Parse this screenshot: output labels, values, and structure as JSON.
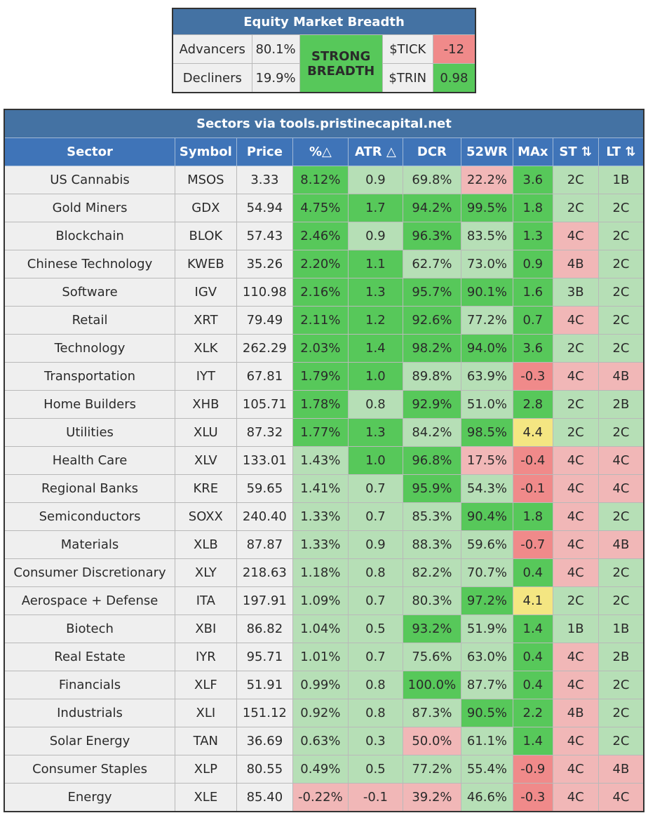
{
  "breadth": {
    "title": "Equity Market Breadth",
    "advancers_label": "Advancers",
    "advancers_value": "80.1%",
    "decliners_label": "Decliners",
    "decliners_value": "19.9%",
    "status": "STRONG BREADTH",
    "tick_label": "$TICK",
    "tick_value": "-12",
    "trin_label": "$TRIN",
    "trin_value": "0.98"
  },
  "sectors": {
    "title": "Sectors via tools.pristinecapital.net",
    "columns": [
      "Sector",
      "Symbol",
      "Price",
      "%△",
      "ATR △",
      "DCR",
      "52WR",
      "MAx",
      "ST ⇅",
      "LT ⇅"
    ],
    "rows": [
      {
        "sector": "US Cannabis",
        "symbol": "MSOS",
        "price": "3.33",
        "pct": "8.12%",
        "atr": "0.9",
        "dcr": "69.8%",
        "wr52": "22.2%",
        "max": "3.6",
        "st": "2C",
        "lt": "1B"
      },
      {
        "sector": "Gold Miners",
        "symbol": "GDX",
        "price": "54.94",
        "pct": "4.75%",
        "atr": "1.7",
        "dcr": "94.2%",
        "wr52": "99.5%",
        "max": "1.8",
        "st": "2C",
        "lt": "2C"
      },
      {
        "sector": "Blockchain",
        "symbol": "BLOK",
        "price": "57.43",
        "pct": "2.46%",
        "atr": "0.9",
        "dcr": "96.3%",
        "wr52": "83.5%",
        "max": "1.3",
        "st": "4C",
        "lt": "2C"
      },
      {
        "sector": "Chinese Technology",
        "symbol": "KWEB",
        "price": "35.26",
        "pct": "2.20%",
        "atr": "1.1",
        "dcr": "62.7%",
        "wr52": "73.0%",
        "max": "0.9",
        "st": "4B",
        "lt": "2C"
      },
      {
        "sector": "Software",
        "symbol": "IGV",
        "price": "110.98",
        "pct": "2.16%",
        "atr": "1.3",
        "dcr": "95.7%",
        "wr52": "90.1%",
        "max": "1.6",
        "st": "3B",
        "lt": "2C"
      },
      {
        "sector": "Retail",
        "symbol": "XRT",
        "price": "79.49",
        "pct": "2.11%",
        "atr": "1.2",
        "dcr": "92.6%",
        "wr52": "77.2%",
        "max": "0.7",
        "st": "4C",
        "lt": "2C"
      },
      {
        "sector": "Technology",
        "symbol": "XLK",
        "price": "262.29",
        "pct": "2.03%",
        "atr": "1.4",
        "dcr": "98.2%",
        "wr52": "94.0%",
        "max": "3.6",
        "st": "2C",
        "lt": "2C"
      },
      {
        "sector": "Transportation",
        "symbol": "IYT",
        "price": "67.81",
        "pct": "1.79%",
        "atr": "1.0",
        "dcr": "89.8%",
        "wr52": "63.9%",
        "max": "-0.3",
        "st": "4C",
        "lt": "4B"
      },
      {
        "sector": "Home Builders",
        "symbol": "XHB",
        "price": "105.71",
        "pct": "1.78%",
        "atr": "0.8",
        "dcr": "92.9%",
        "wr52": "51.0%",
        "max": "2.8",
        "st": "2C",
        "lt": "2B"
      },
      {
        "sector": "Utilities",
        "symbol": "XLU",
        "price": "87.32",
        "pct": "1.77%",
        "atr": "1.3",
        "dcr": "84.2%",
        "wr52": "98.5%",
        "max": "4.4",
        "st": "2C",
        "lt": "2C"
      },
      {
        "sector": "Health Care",
        "symbol": "XLV",
        "price": "133.01",
        "pct": "1.43%",
        "atr": "1.0",
        "dcr": "96.8%",
        "wr52": "17.5%",
        "max": "-0.4",
        "st": "4C",
        "lt": "4C"
      },
      {
        "sector": "Regional Banks",
        "symbol": "KRE",
        "price": "59.65",
        "pct": "1.41%",
        "atr": "0.7",
        "dcr": "95.9%",
        "wr52": "54.3%",
        "max": "-0.1",
        "st": "4C",
        "lt": "4C"
      },
      {
        "sector": "Semiconductors",
        "symbol": "SOXX",
        "price": "240.40",
        "pct": "1.33%",
        "atr": "0.7",
        "dcr": "85.3%",
        "wr52": "90.4%",
        "max": "1.8",
        "st": "4C",
        "lt": "2C"
      },
      {
        "sector": "Materials",
        "symbol": "XLB",
        "price": "87.87",
        "pct": "1.33%",
        "atr": "0.9",
        "dcr": "88.3%",
        "wr52": "59.6%",
        "max": "-0.7",
        "st": "4C",
        "lt": "4B"
      },
      {
        "sector": "Consumer Discretionary",
        "symbol": "XLY",
        "price": "218.63",
        "pct": "1.18%",
        "atr": "0.8",
        "dcr": "82.2%",
        "wr52": "70.7%",
        "max": "0.4",
        "st": "4C",
        "lt": "2C"
      },
      {
        "sector": "Aerospace + Defense",
        "symbol": "ITA",
        "price": "197.91",
        "pct": "1.09%",
        "atr": "0.7",
        "dcr": "80.3%",
        "wr52": "97.2%",
        "max": "4.1",
        "st": "2C",
        "lt": "2C"
      },
      {
        "sector": "Biotech",
        "symbol": "XBI",
        "price": "86.82",
        "pct": "1.04%",
        "atr": "0.5",
        "dcr": "93.2%",
        "wr52": "51.9%",
        "max": "1.4",
        "st": "1B",
        "lt": "1B"
      },
      {
        "sector": "Real Estate",
        "symbol": "IYR",
        "price": "95.71",
        "pct": "1.01%",
        "atr": "0.7",
        "dcr": "75.6%",
        "wr52": "63.0%",
        "max": "0.4",
        "st": "4C",
        "lt": "2B"
      },
      {
        "sector": "Financials",
        "symbol": "XLF",
        "price": "51.91",
        "pct": "0.99%",
        "atr": "0.8",
        "dcr": "100.0%",
        "wr52": "87.7%",
        "max": "0.4",
        "st": "4C",
        "lt": "2C"
      },
      {
        "sector": "Industrials",
        "symbol": "XLI",
        "price": "151.12",
        "pct": "0.92%",
        "atr": "0.8",
        "dcr": "87.3%",
        "wr52": "90.5%",
        "max": "2.2",
        "st": "4B",
        "lt": "2C"
      },
      {
        "sector": "Solar Energy",
        "symbol": "TAN",
        "price": "36.69",
        "pct": "0.63%",
        "atr": "0.3",
        "dcr": "50.0%",
        "wr52": "61.1%",
        "max": "1.4",
        "st": "4C",
        "lt": "2C"
      },
      {
        "sector": "Consumer Staples",
        "symbol": "XLP",
        "price": "80.55",
        "pct": "0.49%",
        "atr": "0.5",
        "dcr": "77.2%",
        "wr52": "55.4%",
        "max": "-0.9",
        "st": "4C",
        "lt": "4B"
      },
      {
        "sector": "Energy",
        "symbol": "XLE",
        "price": "85.40",
        "pct": "-0.22%",
        "atr": "-0.1",
        "dcr": "39.2%",
        "wr52": "46.6%",
        "max": "-0.3",
        "st": "4C",
        "lt": "4C"
      }
    ]
  }
}
